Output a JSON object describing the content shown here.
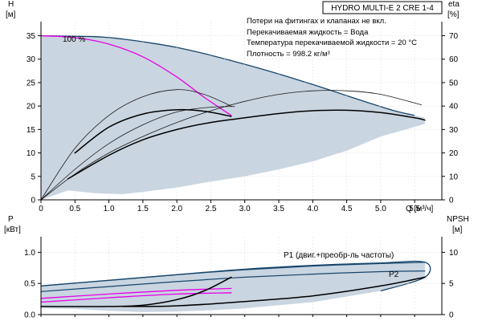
{
  "colors": {
    "envelope_fill": "#c9d5e1",
    "envelope_stroke": "#16456b",
    "curve_black": "#000000",
    "curve_thin": "#1a1a1a",
    "curve_magenta": "#e600e6",
    "axis": "#000000"
  },
  "chart_data": [
    {
      "type": "line",
      "title": "HYDRO MULTI-E 2 CRE 1-4",
      "notes": [
        "Потери на фитингах и клапанах не вкл.",
        "Перекачиваемая жидкость = Вода",
        "Температура перекачиваемой жидкости = 20 °C",
        "Плотность = 998.2 кг/м³"
      ],
      "xlabel": "Q [м³/ч]",
      "ylabel_left": "H",
      "ylabel_left_unit": "[м]",
      "ylabel_right": "eta",
      "ylabel_right_unit": "[%]",
      "xlim": [
        0,
        5.9
      ],
      "ylim_left": [
        0,
        38
      ],
      "ylim_right": [
        0,
        76
      ],
      "x_ticks": [
        "0",
        "0.5",
        "1.0",
        "1.5",
        "2.0",
        "2.5",
        "3.0",
        "3.5",
        "4.0",
        "4.5",
        "5.0",
        "5.5"
      ],
      "y_ticks_left": [
        "0",
        "5",
        "10",
        "15",
        "20",
        "25",
        "30",
        "35"
      ],
      "y_ticks_right": [
        "0",
        "10",
        "20",
        "30",
        "40",
        "50",
        "60",
        "70"
      ],
      "annotation": "100 %",
      "envelope": {
        "x": [
          0,
          0.8,
          1.2,
          1.6,
          2.0,
          2.4,
          2.8,
          3.2,
          3.6,
          4.0,
          4.4,
          4.8,
          5.2,
          5.5,
          5.65,
          5.65,
          5.0,
          4.5,
          4.0,
          3.5,
          3.0,
          2.5,
          2.0,
          1.5,
          1.2,
          0.8,
          0.4,
          0
        ],
        "y": [
          35,
          34.8,
          34.3,
          33.5,
          32.5,
          31.2,
          29.7,
          28.1,
          26.4,
          24.6,
          22.7,
          20.8,
          19.0,
          18.0,
          17.5,
          16.2,
          13.5,
          10.5,
          8.2,
          6.5,
          5.0,
          3.9,
          2.6,
          1.7,
          1.2,
          1.4,
          2.0,
          0
        ]
      },
      "series": [
        {
          "style": "magenta",
          "x": [
            0,
            0.5,
            1.0,
            1.5,
            2.0,
            2.4,
            2.8
          ],
          "y": [
            35,
            34.6,
            33.2,
            30.5,
            26.2,
            21.9,
            18.0
          ]
        },
        {
          "style": "thin",
          "axis": "right",
          "x": [
            0,
            0.5,
            1.0,
            1.5,
            2.0,
            2.4,
            2.8
          ],
          "y": [
            0,
            22,
            36,
            44,
            47,
            45,
            40
          ]
        },
        {
          "style": "thin",
          "axis": "right",
          "x": [
            0,
            0.5,
            1.0,
            1.5,
            2.0,
            2.5,
            2.85
          ],
          "y": [
            0,
            13,
            24,
            32,
            37.5,
            39.5,
            39.8
          ]
        },
        {
          "style": "thin",
          "axis": "right",
          "x": [
            0,
            0.5,
            1.0,
            1.5,
            2.0,
            2.5,
            3.0,
            3.5,
            4.0,
            4.5,
            5.0,
            5.6
          ],
          "y": [
            0,
            11,
            20,
            27,
            33,
            38,
            42,
            45,
            46.5,
            46.5,
            45,
            40.5
          ]
        },
        {
          "style": "thick",
          "x": [
            0.5,
            1.0,
            1.5,
            2.0,
            2.4,
            2.8
          ],
          "y": [
            10,
            15.5,
            18.3,
            19.2,
            18.9,
            17.8
          ]
        },
        {
          "style": "thick",
          "x": [
            0.4,
            1.0,
            1.5,
            2.0,
            2.5,
            3.0,
            3.5,
            4.0,
            4.5,
            5.0,
            5.5,
            5.65
          ],
          "y": [
            4.5,
            9.5,
            12.8,
            15.0,
            16.5,
            17.5,
            18.4,
            19.0,
            19.1,
            18.6,
            17.5,
            17.0
          ]
        }
      ]
    },
    {
      "type": "line",
      "ylabel_left": "P",
      "ylabel_left_unit": "[кВт]",
      "ylabel_right": "NPSH",
      "ylabel_right_unit": "[м]",
      "xlim": [
        0,
        5.9
      ],
      "ylim_left": [
        0,
        1.25
      ],
      "ylim_right": [
        0,
        12.5
      ],
      "y_ticks_left": [
        "0.0",
        "0.5",
        "1.0"
      ],
      "y_ticks_right": [
        "0",
        "5",
        "10"
      ],
      "annotations": [
        "P1 (двиг.+преобр-ль частоты)",
        "P2"
      ],
      "envelope": {
        "x": [
          0,
          1.0,
          2.0,
          3.0,
          4.0,
          5.0,
          5.65,
          5.65,
          5.0,
          4.0,
          3.0,
          2.5,
          2.0,
          1.5,
          1.0,
          0.5,
          0
        ],
        "y": [
          0.46,
          0.55,
          0.64,
          0.73,
          0.79,
          0.83,
          0.84,
          0.6,
          0.38,
          0.2,
          0.1,
          0.07,
          0.05,
          0.04,
          0.06,
          0.09,
          0.1
        ]
      },
      "series": [
        {
          "style": "navy",
          "name": "P1 (двиг.+преобр-ль частоты)",
          "x": [
            0,
            1.0,
            2.0,
            3.0,
            4.0,
            5.0,
            5.65
          ],
          "y": [
            0.46,
            0.55,
            0.64,
            0.72,
            0.78,
            0.82,
            0.84
          ]
        },
        {
          "style": "navy",
          "name": "P2",
          "x": [
            0,
            1.0,
            2.0,
            3.0,
            4.0,
            5.0,
            5.65
          ],
          "y": [
            0.37,
            0.45,
            0.53,
            0.6,
            0.65,
            0.69,
            0.7
          ]
        },
        {
          "style": "magenta",
          "x": [
            0,
            1.0,
            2.0,
            2.8
          ],
          "y": [
            0.26,
            0.33,
            0.39,
            0.42
          ]
        },
        {
          "style": "magenta",
          "x": [
            0,
            1.0,
            2.0,
            2.8
          ],
          "y": [
            0.2,
            0.27,
            0.33,
            0.35
          ]
        },
        {
          "style": "thick",
          "axis": "right",
          "x": [
            0,
            1.0,
            1.5,
            2.0,
            2.4,
            2.8
          ],
          "y": [
            1.3,
            1.3,
            1.5,
            2.4,
            3.8,
            6.0
          ]
        },
        {
          "style": "thick",
          "axis": "right",
          "x": [
            1.2,
            2.0,
            3.0,
            4.0,
            5.0,
            5.65
          ],
          "y": [
            1.3,
            1.4,
            2.1,
            3.0,
            4.6,
            6.0
          ]
        }
      ]
    }
  ]
}
